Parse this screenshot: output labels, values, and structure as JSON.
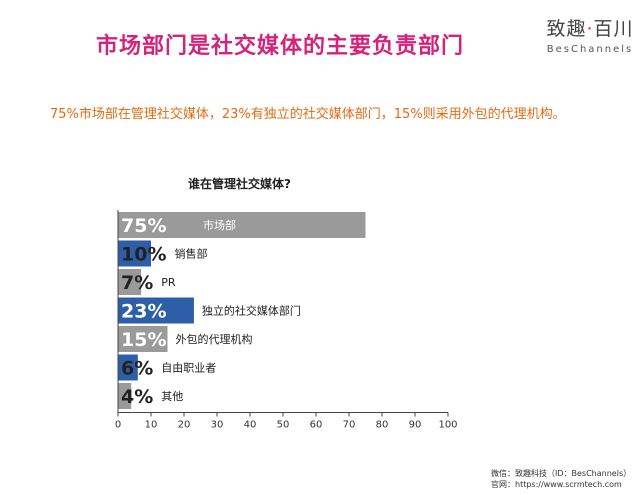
{
  "header": {
    "title": "市场部门是社交媒体的主要负责部门",
    "logo_cn_part1": "致趣",
    "logo_cn_dot": "·",
    "logo_cn_part2": "百川",
    "logo_en": "BesChannels"
  },
  "subtitle": "75%市场部在管理社交媒体，23%有独立的社交媒体部门，15%则采用外包的代理机构。",
  "footer": {
    "line1": "微信：致趣科技（ID：BesChannels）",
    "line2": "官网：https://www.scrmtech.com"
  },
  "colors": {
    "gray": "#9a9a9a",
    "blue": "#2e5ea8",
    "title": "#d4237a",
    "subtitle": "#e66a12"
  },
  "chart_data": {
    "type": "bar",
    "orientation": "horizontal",
    "title": "谁在管理社交媒体?",
    "categories": [
      "市场部",
      "销售部",
      "PR",
      "独立的社交媒体部门",
      "外包的代理机构",
      "自由职业者",
      "其他"
    ],
    "values": [
      75,
      10,
      7,
      23,
      15,
      6,
      4
    ],
    "value_labels": [
      "75%",
      "10%",
      "7%",
      "23%",
      "15%",
      "6%",
      "4%"
    ],
    "bar_colors": [
      "gray",
      "blue",
      "gray",
      "blue",
      "gray",
      "blue",
      "gray"
    ],
    "xlim": [
      0,
      100
    ],
    "xticks": [
      0,
      10,
      20,
      30,
      40,
      50,
      60,
      70,
      80,
      90,
      100
    ],
    "grid": false,
    "legend": "none"
  }
}
